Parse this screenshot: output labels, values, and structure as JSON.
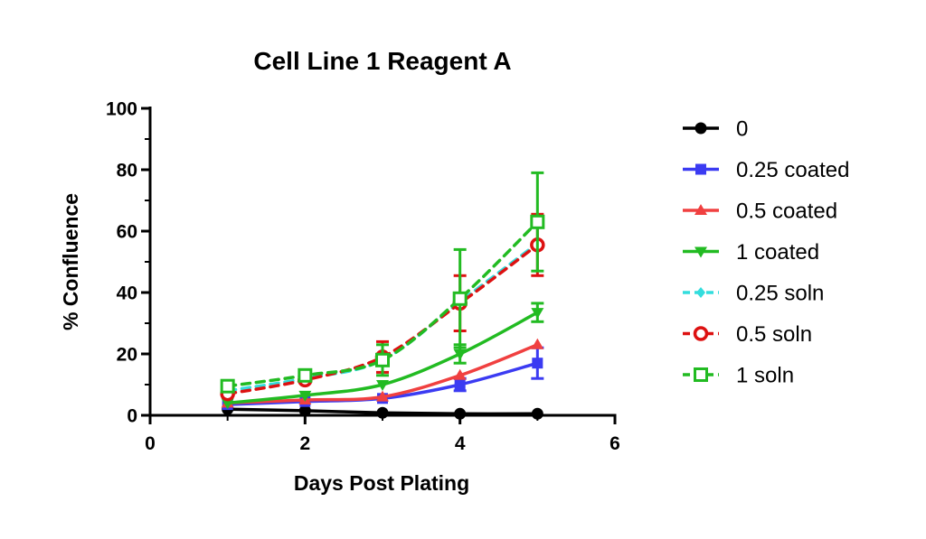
{
  "chart_data": {
    "type": "line",
    "title": "Cell  Line 1 Reagent A",
    "xlabel": "Days Post Plating",
    "ylabel": "% Confluence",
    "xlim": [
      0,
      6
    ],
    "ylim": [
      0,
      100
    ],
    "x_ticks": [
      "0",
      "2",
      "4",
      "6"
    ],
    "y_ticks": [
      "0",
      "20",
      "40",
      "60",
      "80",
      "100"
    ],
    "grid": false,
    "legend_position": "right",
    "x": [
      1,
      2,
      3,
      4,
      5
    ],
    "series": [
      {
        "name": "0",
        "color": "#000000",
        "marker": "circle-filled",
        "dashed": false,
        "values": [
          2,
          1.5,
          0.8,
          0.5,
          0.5
        ],
        "errors": [
          0,
          0,
          0,
          0,
          0
        ]
      },
      {
        "name": "0.25 coated",
        "color": "#3b3bf2",
        "marker": "square-filled",
        "dashed": false,
        "values": [
          3.5,
          4.5,
          5.5,
          10,
          17
        ],
        "errors": [
          0,
          0,
          0,
          2,
          5
        ]
      },
      {
        "name": "0.5 coated",
        "color": "#f04040",
        "marker": "triangle-up-filled",
        "dashed": false,
        "values": [
          4,
          5,
          6,
          13,
          23
        ],
        "errors": [
          0,
          0,
          0,
          0,
          0
        ]
      },
      {
        "name": "1 coated",
        "color": "#22bb22",
        "marker": "triangle-down-filled",
        "dashed": false,
        "values": [
          4,
          6.5,
          10,
          20,
          33.5
        ],
        "errors": [
          0,
          0,
          0,
          3,
          3
        ]
      },
      {
        "name": "0.25 soln",
        "color": "#33dddd",
        "marker": "diamond-filled",
        "dashed": true,
        "values": [
          8,
          12,
          18,
          37,
          56
        ],
        "errors": [
          0,
          0,
          0,
          0,
          0
        ]
      },
      {
        "name": "0.5 soln",
        "color": "#dd1111",
        "marker": "circle-open",
        "dashed": true,
        "values": [
          7,
          11.5,
          19,
          36.5,
          55.5
        ],
        "errors": [
          0,
          0,
          5,
          9,
          10
        ]
      },
      {
        "name": "1 soln",
        "color": "#22bb22",
        "marker": "square-open",
        "dashed": true,
        "values": [
          9.5,
          13,
          18,
          38,
          63
        ],
        "errors": [
          0,
          0,
          5,
          16,
          16
        ]
      }
    ]
  }
}
